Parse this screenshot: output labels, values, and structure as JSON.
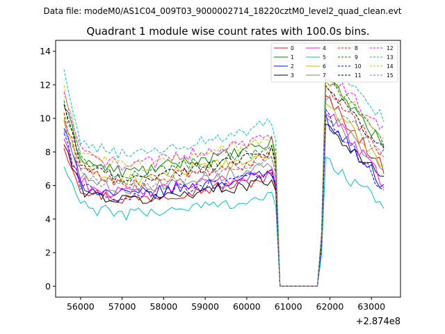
{
  "header": {
    "data_file": "Data file: modeM0/AS1C04_009T03_9000002714_18220cztM0_level2_quad_clean.evt"
  },
  "chart_data": {
    "type": "line",
    "title": "Quadrant 1 module wise count rates with 100.0s bins.",
    "xlabel": "",
    "ylabel": "",
    "x_offset_label": "+2.874e8",
    "xlim": [
      55400,
      63700
    ],
    "ylim": [
      -0.65,
      14.65
    ],
    "x_ticks": [
      56000,
      57000,
      58000,
      59000,
      60000,
      61000,
      62000,
      63000
    ],
    "x_tick_labels": [
      "56000",
      "57000",
      "58000",
      "59000",
      "60000",
      "61000",
      "62000",
      "63000"
    ],
    "y_ticks": [
      0,
      2,
      4,
      6,
      8,
      10,
      12,
      14
    ],
    "y_tick_labels": [
      "0",
      "2",
      "4",
      "6",
      "8",
      "10",
      "12",
      "14"
    ],
    "grid": false,
    "legend_position": "top-right",
    "legend_columns": 4,
    "bin_seconds": 100,
    "segment_1": {
      "x_start": 55600,
      "x_end": 60600,
      "trend_shape": [
        1.0,
        0.86,
        0.81,
        0.83,
        0.88,
        0.91,
        0.95,
        1.02
      ]
    },
    "gap": {
      "x_start": 60800,
      "x_end": 61700,
      "value": 0
    },
    "segment_2": {
      "x_start": 61900,
      "x_end": 63300,
      "trend_shape": [
        1.0,
        0.93,
        0.87,
        0.84,
        0.82
      ]
    },
    "series": [
      {
        "name": "0",
        "color": "#ff0000",
        "dashed": false,
        "start": 8.4,
        "level": 6.4,
        "peak": 11.3,
        "end": 7.0
      },
      {
        "name": "1",
        "color": "#008000",
        "dashed": false,
        "start": 10.8,
        "level": 8.4,
        "peak": 12.6,
        "end": 8.4
      },
      {
        "name": "2",
        "color": "#0000ff",
        "dashed": false,
        "start": 9.5,
        "level": 6.7,
        "peak": 10.0,
        "end": 6.0
      },
      {
        "name": "3",
        "color": "#000000",
        "dashed": false,
        "start": 8.5,
        "level": 6.3,
        "peak": 9.7,
        "end": 6.3
      },
      {
        "name": "4",
        "color": "#ff00ff",
        "dashed": false,
        "start": 8.8,
        "level": 6.8,
        "peak": 10.6,
        "end": 6.2
      },
      {
        "name": "5",
        "color": "#00bfbf",
        "dashed": false,
        "start": 7.1,
        "level": 5.3,
        "peak": 7.5,
        "end": 4.8
      },
      {
        "name": "6",
        "color": "#bfbf00",
        "dashed": false,
        "start": 10.0,
        "level": 7.8,
        "peak": 11.0,
        "end": 7.2
      },
      {
        "name": "7",
        "color": "#808080",
        "dashed": false,
        "start": 9.8,
        "level": 7.2,
        "peak": 10.5,
        "end": 6.7
      },
      {
        "name": "8",
        "color": "#ff0000",
        "dashed": true,
        "start": 10.2,
        "level": 7.6,
        "peak": 11.8,
        "end": 7.8
      },
      {
        "name": "9",
        "color": "#008000",
        "dashed": true,
        "start": 10.9,
        "level": 8.2,
        "peak": 12.4,
        "end": 8.6
      },
      {
        "name": "10",
        "color": "#0000ff",
        "dashed": true,
        "start": 8.9,
        "level": 6.6,
        "peak": 10.2,
        "end": 5.8
      },
      {
        "name": "11",
        "color": "#000000",
        "dashed": true,
        "start": 10.6,
        "level": 7.9,
        "peak": 11.9,
        "end": 8.1
      },
      {
        "name": "12",
        "color": "#ff00ff",
        "dashed": true,
        "start": 11.3,
        "level": 8.9,
        "peak": 12.9,
        "end": 9.3
      },
      {
        "name": "13",
        "color": "#00bfbf",
        "dashed": true,
        "start": 12.6,
        "level": 9.6,
        "peak": 13.1,
        "end": 10.1
      },
      {
        "name": "14",
        "color": "#bfbf00",
        "dashed": true,
        "start": 11.6,
        "level": 8.8,
        "peak": 12.3,
        "end": 8.9
      },
      {
        "name": "15",
        "color": "#808080",
        "dashed": true,
        "start": 9.6,
        "level": 7.4,
        "peak": 11.3,
        "end": 7.6
      }
    ]
  }
}
